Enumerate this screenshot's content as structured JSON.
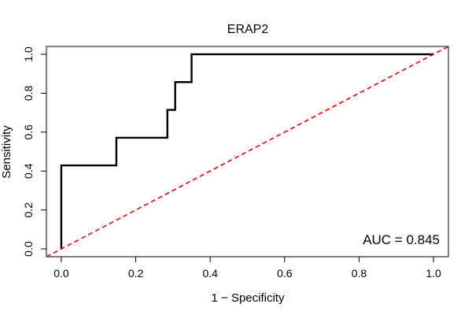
{
  "chart_data": {
    "type": "line",
    "title": "ERAP2",
    "xlabel": "1 − Specificity",
    "ylabel": "Sensitivity",
    "xlim": [
      -0.04,
      1.04
    ],
    "ylim": [
      -0.04,
      1.04
    ],
    "x_ticks": [
      0.0,
      0.2,
      0.4,
      0.6,
      0.8,
      1.0
    ],
    "y_ticks": [
      0.0,
      0.2,
      0.4,
      0.6,
      0.8,
      1.0
    ],
    "x_tick_labels": [
      "0.0",
      "0.2",
      "0.4",
      "0.6",
      "0.8",
      "1.0"
    ],
    "y_tick_labels": [
      "0.0",
      "0.2",
      "0.4",
      "0.6",
      "0.8",
      "1.0"
    ],
    "grid": false,
    "series": [
      {
        "color": "#000000",
        "x": [
          0.0,
          0.0,
          0.0,
          0.148,
          0.148,
          0.285,
          0.285,
          0.306,
          0.306,
          0.35,
          0.35,
          1.0
        ],
        "y": [
          0.0,
          0.143,
          0.429,
          0.429,
          0.571,
          0.571,
          0.714,
          0.714,
          0.857,
          0.857,
          1.0,
          1.0
        ]
      },
      {
        "color": "#ee0000",
        "style": "dashed",
        "x": [
          -0.04,
          1.04
        ],
        "y": [
          -0.04,
          1.04
        ]
      }
    ],
    "annotations": [
      {
        "text": "AUC = 0.845",
        "position": "bottom-right"
      }
    ]
  }
}
